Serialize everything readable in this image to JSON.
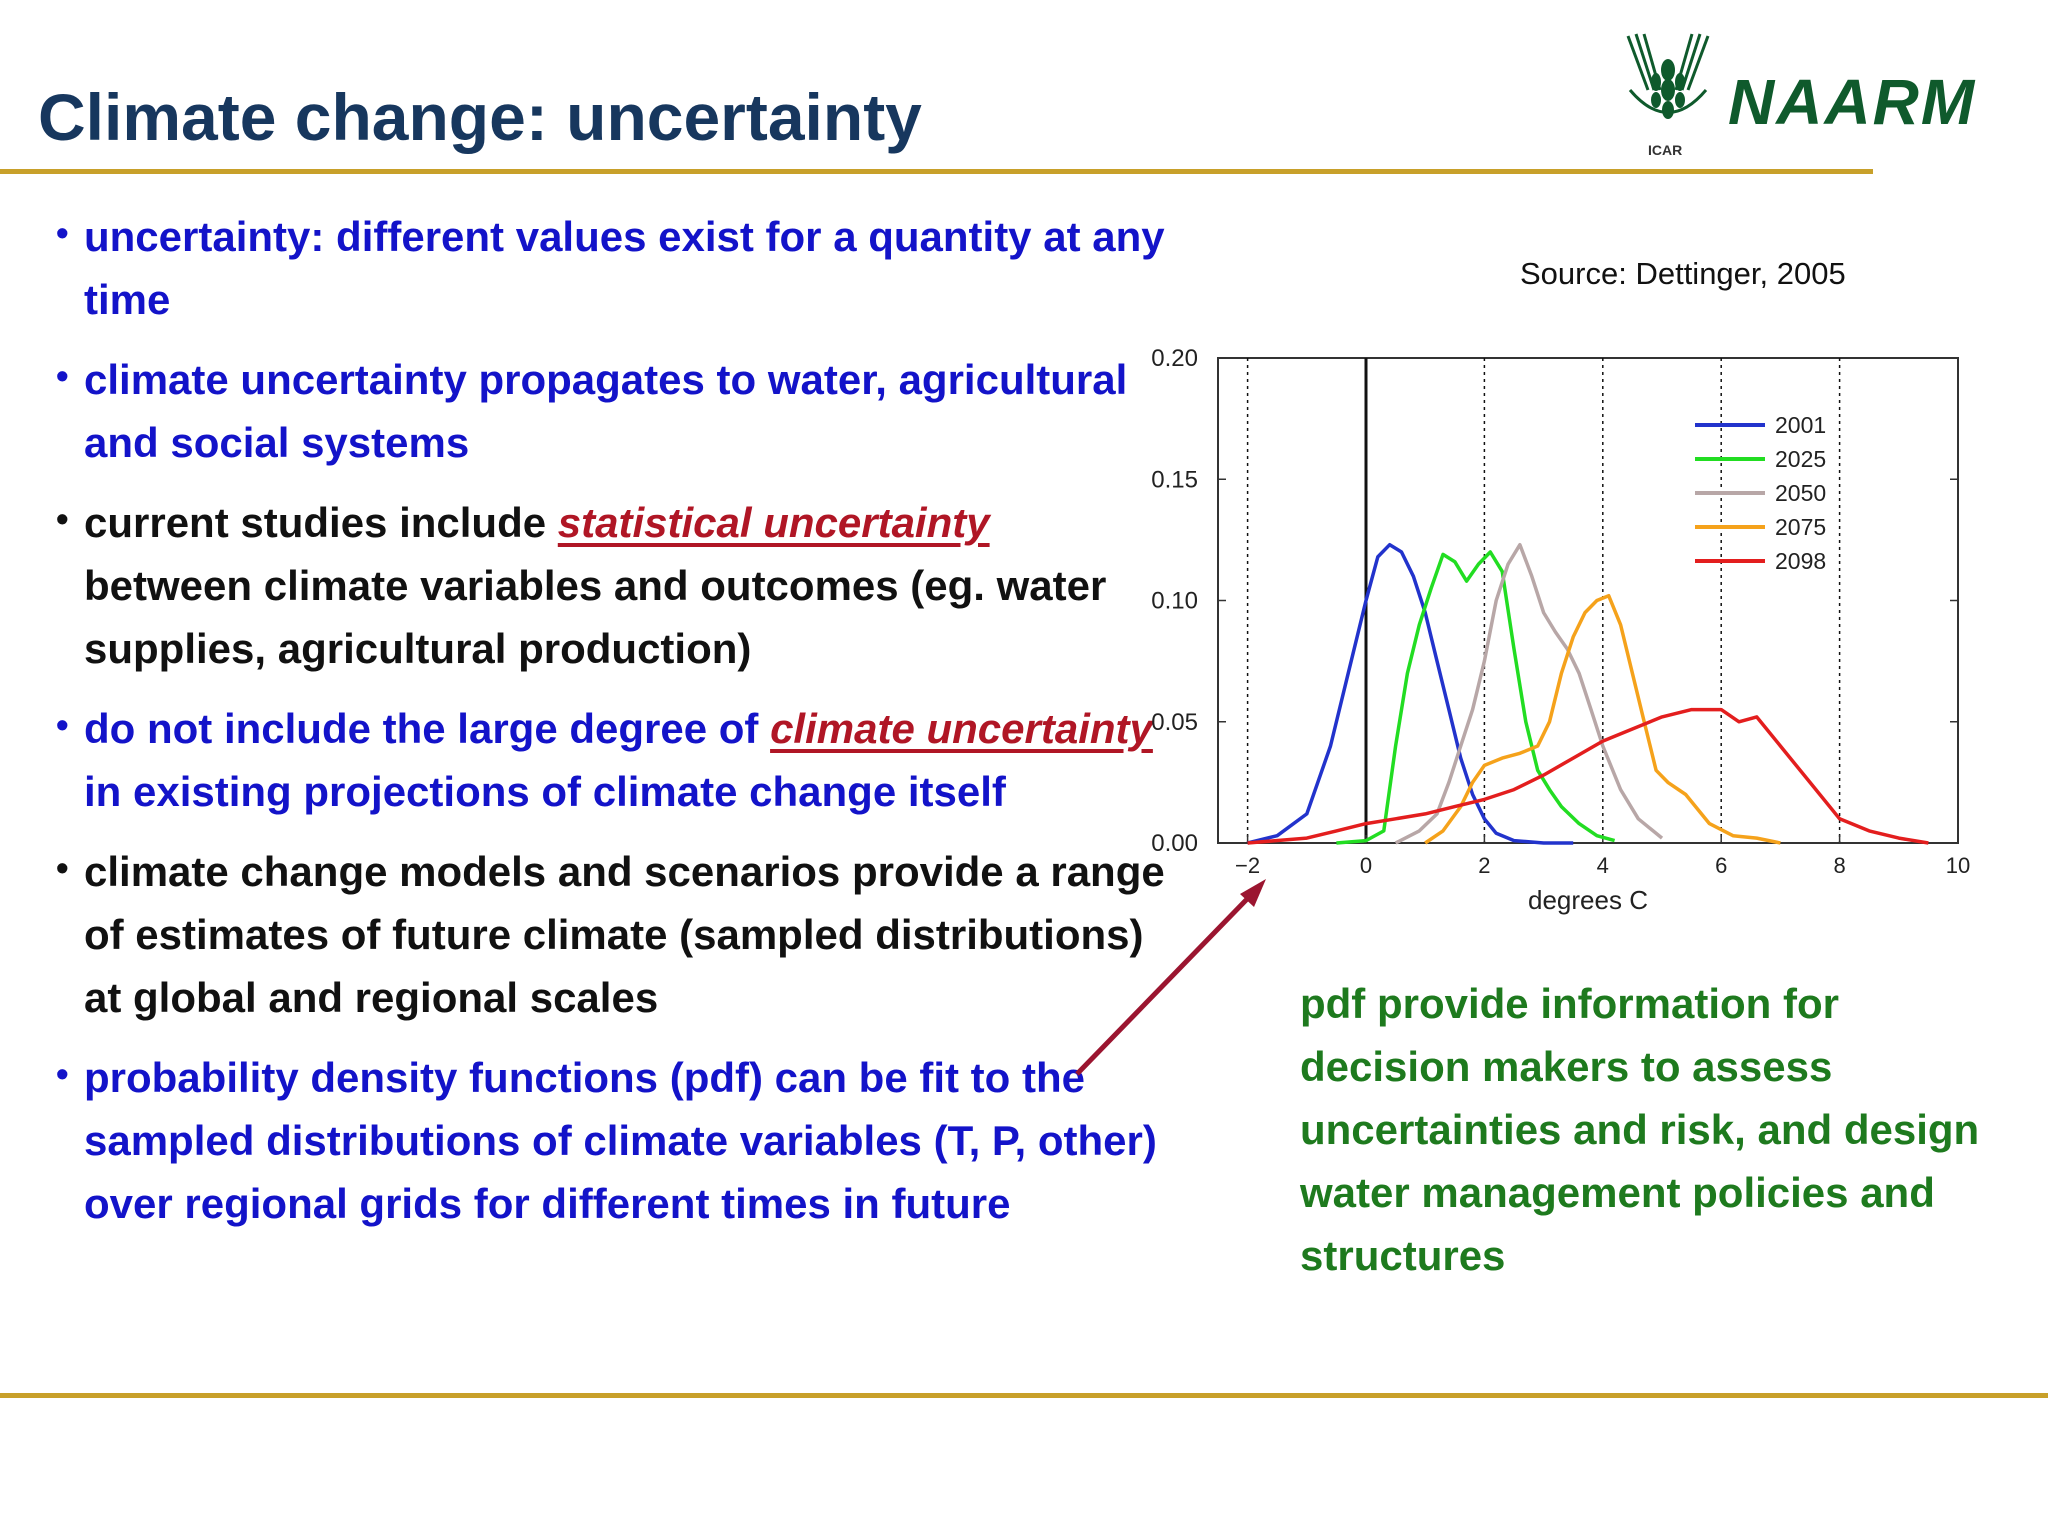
{
  "slide": {
    "title": "Climate change: uncertainty",
    "logo": {
      "name": "NAARM",
      "sub": "ICAR"
    },
    "source": "Source: Dettinger, 2005",
    "bullets": [
      {
        "color": "blue",
        "parts": [
          {
            "text": "uncertainty: different values exist for a quantity at any time"
          }
        ]
      },
      {
        "color": "blue",
        "parts": [
          {
            "text": "climate uncertainty propagates to water, agricultural and social systems"
          }
        ]
      },
      {
        "color": "black",
        "parts": [
          {
            "text": "current  studies  include  "
          },
          {
            "text": "statistical uncertainty",
            "emph": true
          },
          {
            "text": " between climate variables and outcomes (eg. water supplies, agricultural  production)"
          }
        ]
      },
      {
        "color": "blue",
        "parts": [
          {
            "text": "do not include the large degree of "
          },
          {
            "text": "climate uncertainty",
            "emph": true
          },
          {
            "text": " in existing projections of climate change itself"
          }
        ]
      },
      {
        "color": "black",
        "parts": [
          {
            "text": "climate change models and scenarios provide a range of estimates of future climate (sampled distributions) at global and regional scales"
          }
        ]
      },
      {
        "color": "blue",
        "parts": [
          {
            "text": "probability density functions (pdf) can be fit to the sampled distributions of climate variables (T, P, other) over regional grids for different times in future"
          }
        ]
      }
    ],
    "note": "pdf  provide information for decision makers to assess uncertainties and risk, and design water management policies and structures",
    "colors": {
      "title": "#17375e",
      "bullet_blue": "#1313c9",
      "bullet_black": "#111111",
      "emphasis": "#b01625",
      "note": "#1e7a1e",
      "rule": "#c8a02a",
      "arrow": "#9b1530"
    }
  },
  "chart_data": {
    "type": "line",
    "title": "",
    "xlabel": "degrees C",
    "ylabel": "",
    "xlim": [
      -2.5,
      10
    ],
    "ylim": [
      0,
      0.2
    ],
    "xticks": [
      -2,
      0,
      2,
      4,
      6,
      8,
      10
    ],
    "yticks": [
      0,
      0.05,
      0.1,
      0.15,
      0.2
    ],
    "ytick_labels": [
      "0.00",
      "0.05",
      "0.10",
      "0.15",
      "0.20"
    ],
    "vertical_lines": [
      {
        "x": -2,
        "style": "dotted"
      },
      {
        "x": 0,
        "style": "solid"
      },
      {
        "x": 2,
        "style": "dotted"
      },
      {
        "x": 4,
        "style": "dotted"
      },
      {
        "x": 6,
        "style": "dotted"
      },
      {
        "x": 8,
        "style": "dotted"
      }
    ],
    "legend": "top-right",
    "series": [
      {
        "name": "2001",
        "color": "#2233cc",
        "x": [
          -2,
          -1.5,
          -1,
          -0.6,
          -0.3,
          0,
          0.2,
          0.4,
          0.6,
          0.8,
          1.0,
          1.2,
          1.4,
          1.6,
          1.8,
          2.0,
          2.2,
          2.5,
          3,
          3.5
        ],
        "y": [
          0,
          0.003,
          0.012,
          0.04,
          0.07,
          0.1,
          0.118,
          0.123,
          0.12,
          0.11,
          0.095,
          0.075,
          0.055,
          0.035,
          0.02,
          0.01,
          0.004,
          0.001,
          0,
          0
        ]
      },
      {
        "name": "2025",
        "color": "#22dd22",
        "x": [
          -0.5,
          0,
          0.3,
          0.5,
          0.7,
          0.9,
          1.1,
          1.3,
          1.5,
          1.7,
          1.9,
          2.1,
          2.3,
          2.5,
          2.7,
          2.9,
          3.1,
          3.3,
          3.6,
          3.9,
          4.2
        ],
        "y": [
          0,
          0.001,
          0.005,
          0.04,
          0.07,
          0.09,
          0.105,
          0.119,
          0.116,
          0.108,
          0.115,
          0.12,
          0.112,
          0.08,
          0.05,
          0.03,
          0.022,
          0.015,
          0.008,
          0.003,
          0.001
        ]
      },
      {
        "name": "2050",
        "color": "#b8a7a7",
        "x": [
          0.5,
          0.9,
          1.2,
          1.4,
          1.6,
          1.8,
          2.0,
          2.2,
          2.4,
          2.6,
          2.8,
          3.0,
          3.2,
          3.4,
          3.6,
          3.8,
          4.0,
          4.3,
          4.6,
          5.0
        ],
        "y": [
          0,
          0.005,
          0.012,
          0.025,
          0.04,
          0.055,
          0.075,
          0.1,
          0.115,
          0.123,
          0.11,
          0.095,
          0.087,
          0.08,
          0.07,
          0.055,
          0.04,
          0.022,
          0.01,
          0.002
        ]
      },
      {
        "name": "2075",
        "color": "#f5a21b",
        "x": [
          1.0,
          1.3,
          1.6,
          1.8,
          2.0,
          2.3,
          2.6,
          2.9,
          3.1,
          3.3,
          3.5,
          3.7,
          3.9,
          4.1,
          4.3,
          4.5,
          4.7,
          4.9,
          5.1,
          5.4,
          5.8,
          6.2,
          6.6,
          7.0
        ],
        "y": [
          0,
          0.005,
          0.015,
          0.025,
          0.032,
          0.035,
          0.037,
          0.04,
          0.05,
          0.07,
          0.085,
          0.095,
          0.1,
          0.102,
          0.09,
          0.07,
          0.05,
          0.03,
          0.025,
          0.02,
          0.008,
          0.003,
          0.002,
          0
        ]
      },
      {
        "name": "2098",
        "color": "#e31e1e",
        "x": [
          -2,
          -1.0,
          -0.5,
          0,
          0.5,
          1.0,
          1.5,
          2.0,
          2.5,
          3.0,
          3.5,
          4.0,
          4.5,
          5.0,
          5.5,
          6.0,
          6.3,
          6.6,
          7.0,
          7.5,
          8.0,
          8.5,
          9.0,
          9.5
        ],
        "y": [
          0,
          0.002,
          0.005,
          0.008,
          0.01,
          0.012,
          0.015,
          0.018,
          0.022,
          0.028,
          0.035,
          0.042,
          0.047,
          0.052,
          0.055,
          0.055,
          0.05,
          0.052,
          0.04,
          0.025,
          0.01,
          0.005,
          0.002,
          0
        ]
      }
    ]
  }
}
